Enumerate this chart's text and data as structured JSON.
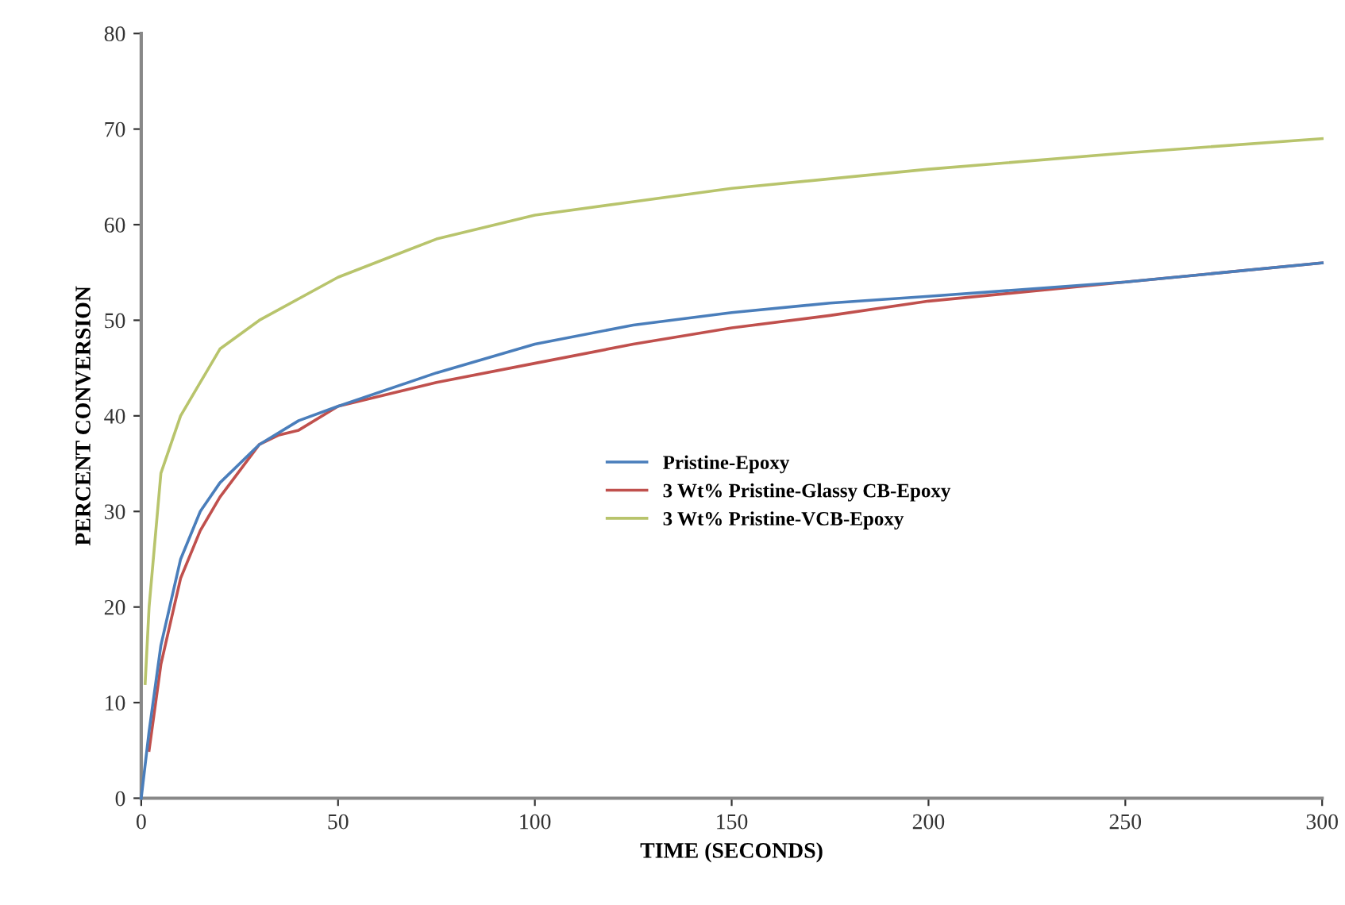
{
  "chart_data": {
    "type": "line",
    "xlabel": "TIME (SECONDS)",
    "ylabel": "PERCENT CONVERSION",
    "xlim": [
      0,
      300
    ],
    "xticks": [
      0,
      50,
      100,
      150,
      200,
      250,
      300
    ],
    "ylim": [
      0,
      80
    ],
    "yticks": [
      0,
      10,
      20,
      30,
      40,
      50,
      60,
      70,
      80
    ],
    "grid": false,
    "legend": "center",
    "marker": "none",
    "line_style": "solid",
    "series": [
      {
        "name": "Pristine-Epoxy",
        "color": "#4a7ebb",
        "x": [
          0,
          2,
          5,
          10,
          15,
          20,
          30,
          40,
          50,
          75,
          100,
          125,
          150,
          175,
          200,
          250,
          300
        ],
        "values": [
          0,
          7,
          16,
          25,
          30,
          33,
          37,
          39.5,
          41,
          44.5,
          47.5,
          49.5,
          50.8,
          51.8,
          52.5,
          54,
          56
        ]
      },
      {
        "name": "3 Wt% Pristine-Glassy CB-Epoxy",
        "color": "#c0504d",
        "x": [
          2,
          5,
          10,
          15,
          20,
          30,
          35,
          40,
          50,
          75,
          100,
          125,
          150,
          175,
          200,
          250,
          300
        ],
        "values": [
          5,
          14,
          23,
          28,
          31.5,
          37,
          38,
          38.5,
          41,
          43.5,
          45.5,
          47.5,
          49.2,
          50.5,
          52,
          54,
          56
        ]
      },
      {
        "name": "3 Wt% Pristine-VCB-Epoxy",
        "color": "#b8c46c",
        "x": [
          1,
          2,
          5,
          10,
          20,
          30,
          50,
          75,
          100,
          150,
          200,
          250,
          300
        ],
        "values": [
          12,
          20,
          34,
          40,
          47,
          50,
          54.5,
          58.5,
          61,
          63.8,
          65.8,
          67.5,
          69
        ]
      }
    ]
  }
}
